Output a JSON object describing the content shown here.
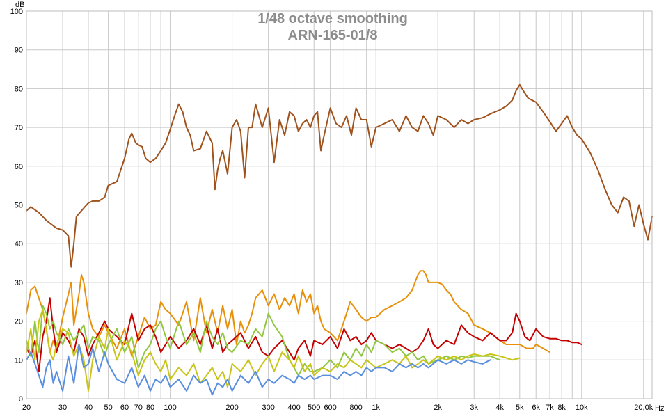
{
  "chart_data": {
    "type": "line",
    "title": "1/48 octave smoothing",
    "subtitle": "ARN-165-01/8",
    "ylabel": "dB",
    "xunit": "Hz",
    "xscale": "log",
    "xlim": [
      20,
      22000
    ],
    "ylim": [
      0,
      100
    ],
    "grid": true,
    "y_ticks": [
      0,
      10,
      20,
      30,
      40,
      50,
      60,
      70,
      80,
      90,
      100
    ],
    "x_ticks": [
      {
        "value": 20,
        "label": "20"
      },
      {
        "value": 30,
        "label": "30"
      },
      {
        "value": 40,
        "label": "40"
      },
      {
        "value": 50,
        "label": "50"
      },
      {
        "value": 60,
        "label": "60"
      },
      {
        "value": 70,
        "label": "70"
      },
      {
        "value": 80,
        "label": "80"
      },
      {
        "value": 100,
        "label": "100"
      },
      {
        "value": 200,
        "label": "200"
      },
      {
        "value": 300,
        "label": "300"
      },
      {
        "value": 400,
        "label": "400"
      },
      {
        "value": 500,
        "label": "500"
      },
      {
        "value": 600,
        "label": "600"
      },
      {
        "value": 800,
        "label": "800"
      },
      {
        "value": 1000,
        "label": "1k"
      },
      {
        "value": 2000,
        "label": "2k"
      },
      {
        "value": 3000,
        "label": "3k"
      },
      {
        "value": 4000,
        "label": "4k"
      },
      {
        "value": 5000,
        "label": "5k"
      },
      {
        "value": 6000,
        "label": "6k"
      },
      {
        "value": 7000,
        "label": "7k"
      },
      {
        "value": 8000,
        "label": "8k"
      },
      {
        "value": 10000,
        "label": "10k"
      },
      {
        "value": 20000,
        "label": "20,0k"
      }
    ],
    "series": [
      {
        "color": "#a0521d",
        "x": [
          20,
          21,
          23,
          25,
          28,
          30,
          32,
          33,
          34,
          35,
          37,
          40,
          42,
          45,
          48,
          50,
          55,
          60,
          63,
          65,
          68,
          70,
          73,
          76,
          80,
          85,
          90,
          95,
          100,
          105,
          110,
          115,
          120,
          125,
          130,
          140,
          150,
          160,
          165,
          170,
          175,
          180,
          190,
          200,
          210,
          220,
          230,
          240,
          250,
          260,
          270,
          280,
          300,
          320,
          340,
          360,
          380,
          400,
          420,
          440,
          460,
          480,
          500,
          520,
          540,
          560,
          600,
          640,
          680,
          720,
          760,
          800,
          850,
          900,
          950,
          1000,
          1100,
          1200,
          1300,
          1400,
          1500,
          1600,
          1700,
          1800,
          1900,
          2000,
          2200,
          2400,
          2600,
          2800,
          3000,
          3300,
          3600,
          4000,
          4300,
          4600,
          4800,
          5000,
          5200,
          5500,
          6000,
          6500,
          7000,
          7500,
          8000,
          8500,
          9000,
          9500,
          10000,
          11000,
          12000,
          13000,
          14000,
          15000,
          16000,
          17000,
          18000,
          19000,
          20000,
          21000,
          22000
        ],
        "y": [
          48.5,
          49.5,
          48,
          46,
          44,
          43.5,
          42,
          34,
          40,
          47,
          48.5,
          50.5,
          51,
          51,
          52,
          55,
          56,
          62,
          67,
          68.5,
          66,
          65.5,
          65,
          62,
          61,
          62,
          64,
          66,
          69.5,
          73,
          76,
          74,
          70,
          68,
          64,
          64.5,
          69,
          66,
          54,
          59,
          62,
          64,
          58,
          70,
          72,
          69,
          57,
          70,
          70,
          76,
          73,
          70,
          75,
          61,
          72,
          68,
          74,
          73,
          69,
          71,
          72,
          70,
          73,
          74,
          64,
          68,
          75,
          71,
          70,
          73,
          68,
          75,
          72,
          72,
          65,
          70,
          71,
          72,
          69,
          73,
          70,
          69,
          73,
          71,
          68,
          73,
          72,
          70,
          72,
          71,
          72,
          72.5,
          73.5,
          74.5,
          75.5,
          77,
          79.5,
          81,
          79.5,
          77.5,
          76.5,
          74,
          71.5,
          69,
          71,
          73,
          70,
          68,
          67,
          63.5,
          59,
          54,
          50,
          48,
          52,
          51,
          44.5,
          50,
          45,
          41,
          47
        ]
      },
      {
        "color": "#e8900a",
        "x": [
          20,
          21,
          22,
          24,
          25,
          26,
          27,
          28,
          30,
          32,
          33,
          34,
          36,
          37,
          38,
          40,
          42,
          45,
          48,
          50,
          55,
          60,
          65,
          70,
          75,
          80,
          85,
          90,
          95,
          100,
          110,
          120,
          130,
          140,
          150,
          160,
          170,
          180,
          190,
          200,
          210,
          220,
          230,
          240,
          250,
          260,
          270,
          280,
          300,
          320,
          340,
          360,
          380,
          400,
          420,
          440,
          460,
          480,
          500,
          520,
          540,
          560,
          600,
          650,
          700,
          750,
          800,
          850,
          900,
          950,
          1000,
          1100,
          1200,
          1300,
          1400,
          1500,
          1600,
          1650,
          1700,
          1750,
          1800,
          1900,
          2000,
          2100,
          2200,
          2300,
          2400,
          2600,
          2800,
          3000,
          3300,
          3600,
          4000,
          4300,
          4600,
          5000,
          5400,
          5800,
          6000,
          6500,
          7000
        ],
        "y": [
          22,
          28,
          29,
          23,
          18,
          12,
          15,
          13,
          21,
          27,
          30,
          19,
          27,
          32,
          30,
          22,
          18,
          16,
          19,
          17,
          13,
          18,
          11,
          16,
          21,
          18,
          19,
          25,
          23,
          22,
          19,
          25,
          15,
          26,
          17,
          23,
          17,
          24,
          18,
          23,
          14,
          20,
          17,
          19,
          22,
          26,
          27,
          28,
          24,
          27,
          23,
          26,
          24,
          27,
          22,
          28,
          25,
          27,
          22,
          24,
          20,
          18,
          17,
          15,
          20,
          25,
          23,
          21,
          20,
          21,
          21,
          23,
          24,
          25,
          26,
          28,
          32,
          33,
          33,
          32,
          30,
          30,
          30,
          29.5,
          28,
          27,
          25,
          23,
          22,
          19,
          18,
          17,
          15,
          14,
          14,
          14,
          13,
          13,
          14,
          13,
          12
        ]
      },
      {
        "color": "#c40000",
        "x": [
          20,
          21,
          22,
          23,
          24,
          25,
          26,
          27,
          28,
          30,
          32,
          34,
          36,
          38,
          40,
          42,
          45,
          48,
          50,
          55,
          60,
          65,
          70,
          75,
          80,
          85,
          90,
          95,
          100,
          110,
          120,
          130,
          140,
          150,
          160,
          170,
          180,
          190,
          200,
          220,
          240,
          260,
          280,
          300,
          320,
          350,
          380,
          400,
          420,
          450,
          480,
          500,
          550,
          600,
          650,
          700,
          750,
          800,
          850,
          900,
          950,
          1000,
          1100,
          1200,
          1300,
          1400,
          1500,
          1600,
          1700,
          1800,
          1900,
          2000,
          2200,
          2400,
          2600,
          2800,
          3000,
          3300,
          3600,
          4000,
          4300,
          4600,
          4800,
          5000,
          5300,
          5600,
          6000,
          6500,
          7000,
          7500,
          8000,
          8500,
          9000,
          9500,
          10000
        ],
        "y": [
          13,
          11,
          15,
          7,
          16,
          20,
          26,
          18,
          12,
          17,
          15,
          12,
          18,
          16,
          11,
          14,
          17,
          20,
          18,
          16,
          14,
          22,
          15,
          18,
          19,
          16,
          12,
          14,
          16,
          13,
          15,
          18,
          14,
          19,
          13,
          18,
          12,
          14,
          15,
          17,
          13,
          16,
          12,
          11,
          13,
          15,
          12,
          10,
          13,
          15,
          11,
          15,
          14,
          16,
          13,
          18,
          15,
          16,
          14,
          15,
          17,
          15,
          14,
          13,
          14,
          13,
          12,
          13,
          15,
          18,
          14,
          13,
          15,
          14,
          19,
          17,
          16,
          15,
          17,
          15,
          15,
          17,
          22,
          20,
          16,
          15,
          18,
          16,
          15.5,
          15.5,
          15,
          15,
          14.5,
          14.5,
          14
        ]
      },
      {
        "color": "#8fc840",
        "x": [
          20,
          21,
          22,
          23,
          24,
          25,
          26,
          27,
          28,
          30,
          32,
          34,
          36,
          38,
          40,
          42,
          45,
          48,
          50,
          55,
          60,
          65,
          70,
          75,
          80,
          85,
          90,
          95,
          100,
          110,
          120,
          130,
          140,
          150,
          160,
          170,
          180,
          190,
          200,
          220,
          240,
          260,
          280,
          300,
          320,
          350,
          380,
          400,
          420,
          450,
          480,
          500,
          550,
          600,
          650,
          700,
          750,
          800,
          850,
          900,
          950,
          1000,
          1100,
          1200,
          1300,
          1400,
          1500,
          1600,
          1700,
          1800,
          2000,
          2200,
          2400,
          2600,
          2800,
          3000,
          3300,
          3600,
          4000
        ],
        "y": [
          15,
          11,
          20,
          12,
          24,
          22,
          18,
          20,
          17,
          14,
          18,
          15,
          17,
          19,
          13,
          16,
          15,
          11,
          14,
          18,
          12,
          16,
          8,
          12,
          14,
          18,
          20,
          16,
          13,
          20,
          14,
          17,
          12,
          20,
          16,
          14,
          17,
          13,
          12,
          15,
          14,
          18,
          16,
          22,
          19,
          16,
          10,
          8,
          6,
          9,
          7,
          7,
          8,
          10,
          8,
          12,
          10,
          13,
          11,
          14,
          12,
          15,
          14,
          12,
          13,
          11,
          12,
          10,
          11,
          9,
          10,
          11,
          10,
          11,
          10.5,
          11,
          11,
          11,
          10
        ]
      },
      {
        "color": "#c8c418",
        "x": [
          20,
          21,
          22,
          23,
          24,
          25,
          26,
          27,
          28,
          30,
          32,
          34,
          36,
          38,
          40,
          42,
          45,
          48,
          50,
          55,
          60,
          65,
          70,
          75,
          80,
          85,
          90,
          95,
          100,
          110,
          120,
          130,
          140,
          150,
          160,
          170,
          180,
          190,
          200,
          220,
          240,
          260,
          280,
          300,
          320,
          350,
          380,
          400,
          420,
          450,
          480,
          500,
          550,
          600,
          650,
          700,
          750,
          800,
          850,
          900,
          950,
          1000,
          1100,
          1200,
          1300,
          1400,
          1500,
          1600,
          1700,
          1800,
          2000,
          2200,
          2400,
          2600,
          2800,
          3000,
          3300,
          3600,
          4000,
          4300,
          4600,
          5000
        ],
        "y": [
          12,
          18,
          10,
          20,
          23,
          18,
          12,
          10,
          14,
          18,
          17,
          11,
          14,
          10,
          2,
          10,
          16,
          13,
          18,
          10,
          15,
          12,
          6,
          10,
          12,
          9,
          7,
          10,
          5,
          8,
          6,
          9,
          4,
          6,
          8,
          5,
          7,
          3,
          9,
          7,
          10,
          6,
          9,
          11,
          7,
          12,
          10,
          8,
          11,
          7,
          9,
          6,
          8,
          7,
          9,
          8,
          10,
          9,
          8,
          10,
          9,
          8,
          9,
          10,
          9,
          11,
          8,
          9,
          10,
          9,
          11,
          10,
          11,
          10,
          11,
          11.5,
          11,
          11.5,
          11,
          10.5,
          10,
          10.5
        ]
      },
      {
        "color": "#5a8fe0",
        "x": [
          20,
          21,
          22,
          23,
          24,
          25,
          26,
          27,
          28,
          30,
          32,
          34,
          36,
          38,
          40,
          42,
          45,
          48,
          50,
          55,
          60,
          65,
          70,
          75,
          80,
          85,
          90,
          95,
          100,
          110,
          120,
          130,
          140,
          150,
          160,
          170,
          180,
          190,
          200,
          220,
          240,
          260,
          280,
          300,
          320,
          350,
          380,
          400,
          420,
          450,
          480,
          500,
          550,
          600,
          650,
          700,
          750,
          800,
          850,
          900,
          950,
          1000,
          1100,
          1200,
          1300,
          1400,
          1500,
          1600,
          1700,
          1800,
          2000,
          2200,
          2400,
          2600,
          2800,
          3000,
          3300,
          3600
        ],
        "y": [
          10,
          12,
          9,
          6,
          3,
          8,
          10,
          4,
          7,
          2,
          11,
          4,
          14,
          8,
          9,
          13,
          7,
          12,
          9,
          5,
          4,
          8,
          3,
          6,
          2,
          5,
          4,
          6,
          3,
          5,
          2,
          6,
          4,
          5,
          1,
          4,
          3,
          5,
          2,
          6,
          4,
          7,
          3,
          5,
          4,
          6,
          5,
          4,
          6,
          5,
          6,
          5,
          6,
          6,
          5,
          7,
          6,
          7,
          6,
          8,
          7,
          8,
          8,
          7,
          9,
          8,
          9,
          8,
          9,
          8,
          10,
          9,
          10,
          9,
          10,
          9.5,
          9,
          10
        ]
      }
    ]
  }
}
